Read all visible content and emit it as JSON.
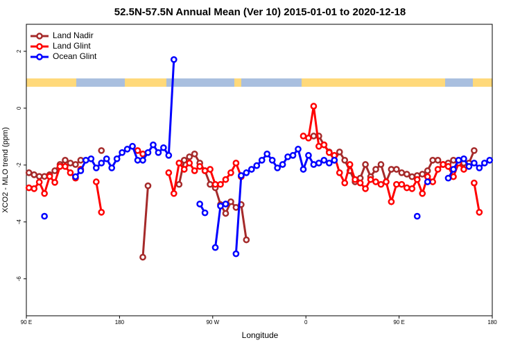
{
  "chart_data": {
    "type": "line",
    "title": "52.5N-57.5N Annual Mean (Ver 10)   2015-01-01 to 2020-12-18",
    "x_label": "Longitude",
    "y_label": "XCO2 - MLO trend (ppm)",
    "xlim": [
      90,
      540
    ],
    "xticks": [
      {
        "value": 90,
        "label": "90 E"
      },
      {
        "value": 180,
        "label": "180"
      },
      {
        "value": 270,
        "label": "90 W"
      },
      {
        "value": 360,
        "label": "0"
      },
      {
        "value": 450,
        "label": "90 E"
      },
      {
        "value": 540,
        "label": "180"
      }
    ],
    "ylim": [
      -7.3,
      2.95
    ],
    "yticks": [
      2,
      0,
      -2,
      -4,
      -6
    ],
    "legend": "top-left",
    "x": [
      92.5,
      97.5,
      102.5,
      107.5,
      112.5,
      117.5,
      122.5,
      127.5,
      132.5,
      137.5,
      142.5,
      147.5,
      152.5,
      157.5,
      162.5,
      167.5,
      172.5,
      177.5,
      182.5,
      187.5,
      192.5,
      197.5,
      202.5,
      207.5,
      212.5,
      217.5,
      222.5,
      227.5,
      232.5,
      237.5,
      242.5,
      247.5,
      252.5,
      257.5,
      262.5,
      267.5,
      272.5,
      277.5,
      282.5,
      287.5,
      292.5,
      297.5,
      302.5,
      307.5,
      312.5,
      317.5,
      322.5,
      327.5,
      332.5,
      337.5,
      342.5,
      347.5,
      352.5,
      357.5,
      362.5,
      367.5,
      372.5,
      377.5,
      382.5,
      387.5,
      392.5,
      397.5,
      402.5,
      407.5,
      412.5,
      417.5,
      422.5,
      427.5,
      432.5,
      437.5,
      442.5,
      447.5,
      452.5,
      457.5,
      462.5,
      467.5,
      472.5,
      477.5,
      482.5,
      487.5,
      492.5,
      497.5,
      502.5,
      507.5,
      512.5,
      517.5,
      522.5,
      527.5,
      532.5,
      537.5
    ],
    "series": [
      {
        "name": "Land Nadir",
        "color": "#a52a2a",
        "values": [
          -2.27,
          -2.34,
          -2.4,
          -2.4,
          -2.34,
          -2.2,
          -1.98,
          -1.83,
          -1.93,
          -1.98,
          -1.83,
          null,
          null,
          null,
          -1.49,
          null,
          null,
          null,
          null,
          null,
          null,
          null,
          -5.24,
          -2.73,
          null,
          null,
          null,
          null,
          null,
          -2.68,
          -1.83,
          -1.71,
          -1.61,
          -1.93,
          -2.2,
          -2.68,
          -2.8,
          -3.39,
          -3.7,
          -3.29,
          -3.49,
          -3.39,
          -4.63,
          null,
          null,
          null,
          null,
          null,
          null,
          null,
          null,
          null,
          null,
          null,
          null,
          -0.98,
          -0.98,
          -1.29,
          -1.54,
          -1.83,
          -1.54,
          -1.83,
          -2.2,
          -2.59,
          -2.46,
          -1.98,
          -2.41,
          -2.15,
          -1.98,
          -2.59,
          -2.15,
          -2.15,
          -2.27,
          -2.32,
          -2.41,
          -2.37,
          -2.32,
          -2.2,
          -1.83,
          -1.83,
          -1.98,
          -1.93,
          -1.83,
          -1.83,
          -1.93,
          -1.93,
          -1.49,
          null,
          null,
          null
        ]
      },
      {
        "name": "Land Glint",
        "color": "#ff0000",
        "values": [
          -2.8,
          -2.83,
          -2.6,
          -3.0,
          -2.4,
          -2.61,
          -2.05,
          -2.05,
          -2.27,
          -2.46,
          -2.15,
          null,
          null,
          -2.59,
          -3.66,
          null,
          null,
          null,
          null,
          null,
          null,
          -1.49,
          -1.61,
          null,
          null,
          null,
          null,
          -2.27,
          -3.0,
          -1.93,
          -2.15,
          -1.93,
          -2.2,
          -2.05,
          -2.2,
          -2.15,
          -2.68,
          -2.68,
          -2.51,
          -2.27,
          -1.93,
          -2.41,
          null,
          null,
          null,
          null,
          null,
          null,
          null,
          null,
          null,
          null,
          null,
          -0.98,
          -1.05,
          0.07,
          -1.34,
          -1.29,
          -1.56,
          -1.66,
          -2.27,
          -2.63,
          -1.98,
          -2.51,
          -2.63,
          -2.83,
          -2.51,
          -2.59,
          -2.68,
          -2.59,
          -3.29,
          -2.68,
          -2.68,
          -2.8,
          -2.83,
          -2.51,
          -3.0,
          -2.41,
          -2.59,
          -2.15,
          -1.98,
          -2.05,
          -2.41,
          -1.93,
          -2.15,
          null,
          -2.63,
          -3.66,
          null,
          null
        ]
      },
      {
        "name": "Ocean Glint",
        "color": "#0000ff",
        "values": [
          null,
          null,
          null,
          -3.8,
          null,
          null,
          null,
          null,
          null,
          -2.41,
          -2.2,
          -1.83,
          -1.78,
          -2.1,
          -1.93,
          -1.78,
          -2.1,
          -1.78,
          -1.56,
          -1.44,
          -1.34,
          -1.83,
          -1.83,
          -1.56,
          -1.29,
          -1.56,
          -1.39,
          -1.66,
          1.71,
          null,
          null,
          null,
          null,
          -3.37,
          -3.68,
          null,
          -4.9,
          -3.44,
          -3.37,
          null,
          -5.12,
          -2.37,
          -2.27,
          -2.15,
          -2.02,
          -1.83,
          -1.61,
          -1.83,
          -2.1,
          -1.98,
          -1.71,
          -1.66,
          -1.44,
          -2.15,
          -1.66,
          -1.98,
          -1.93,
          -1.83,
          -1.93,
          -1.83,
          null,
          null,
          null,
          null,
          null,
          null,
          null,
          null,
          null,
          null,
          null,
          null,
          null,
          null,
          null,
          -3.8,
          null,
          -2.59,
          null,
          null,
          null,
          -2.46,
          -2.15,
          -1.83,
          -1.78,
          -2.05,
          -1.93,
          -2.1,
          -1.93,
          -1.83
        ]
      }
    ]
  }
}
